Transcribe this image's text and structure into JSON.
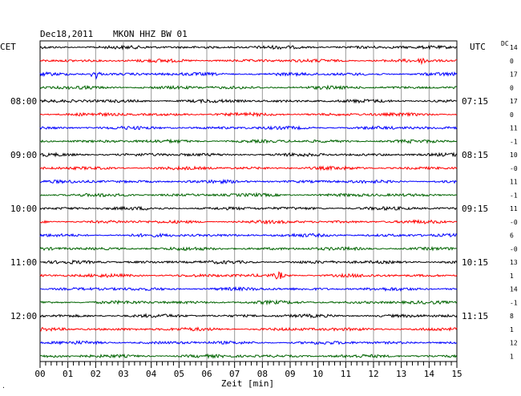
{
  "header": {
    "date": "Dec18,2011",
    "station": "MKON HHZ BW 01",
    "left_tz": "CET",
    "right_tz": "UTC",
    "dc_label": "DC"
  },
  "chart_data": {
    "type": "line",
    "title": "Dec18,2011   MKON HHZ BW 01",
    "xlabel": "Zeit [min]",
    "x_range": [
      0,
      15
    ],
    "x_ticks": [
      "00",
      "01",
      "02",
      "03",
      "04",
      "05",
      "06",
      "07",
      "08",
      "09",
      "10",
      "11",
      "12",
      "13",
      "14",
      "15"
    ],
    "grid": true,
    "trace_colors": [
      "#000000",
      "#ff0000",
      "#0000ff",
      "#006400"
    ],
    "left_time_labels": [
      {
        "row": 4,
        "label": "08:00"
      },
      {
        "row": 8,
        "label": "09:00"
      },
      {
        "row": 12,
        "label": "10:00"
      },
      {
        "row": 16,
        "label": "11:00"
      },
      {
        "row": 20,
        "label": "12:00"
      }
    ],
    "right_time_labels": [
      {
        "row": 4,
        "label": "07:15"
      },
      {
        "row": 8,
        "label": "08:15"
      },
      {
        "row": 12,
        "label": "09:15"
      },
      {
        "row": 16,
        "label": "10:15"
      },
      {
        "row": 20,
        "label": "11:15"
      }
    ],
    "dc_offsets": [
      "14",
      "0",
      "17",
      "0",
      "17",
      "0",
      "11",
      "-1",
      "10",
      "-0",
      "11",
      "-1",
      "11",
      "-0",
      "6",
      "-0",
      "13",
      "1",
      "14",
      "-1",
      "8",
      "1",
      "12",
      "1"
    ],
    "events": [
      {
        "row": 1,
        "minute": 13.8,
        "amplitude": 3.0
      },
      {
        "row": 2,
        "minute": 2.0,
        "amplitude": 5.5
      },
      {
        "row": 17,
        "minute": 8.6,
        "amplitude": 4.0
      }
    ]
  }
}
